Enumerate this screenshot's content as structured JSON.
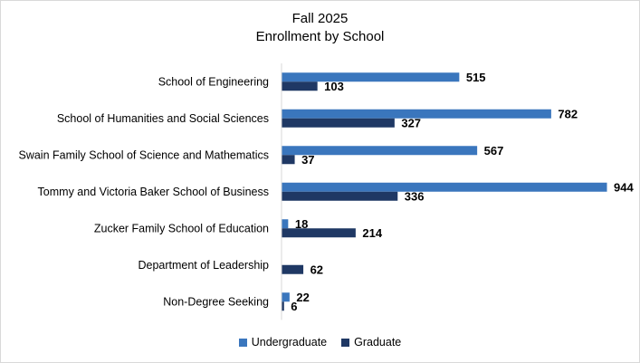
{
  "chart_data": {
    "type": "bar",
    "orientation": "horizontal",
    "title": "Fall 2025",
    "subtitle": "Enrollment by School",
    "categories": [
      "School of Engineering",
      "School of Humanities and Social Sciences",
      "Swain Family School of Science and Mathematics",
      "Tommy and Victoria Baker School of Business",
      "Zucker Family School of Education",
      "Department of Leadership",
      "Non-Degree Seeking"
    ],
    "series": [
      {
        "name": "Undergraduate",
        "color": "#3a76bd",
        "values": [
          515,
          782,
          567,
          944,
          18,
          null,
          22
        ]
      },
      {
        "name": "Graduate",
        "color": "#1f3864",
        "values": [
          103,
          327,
          37,
          336,
          214,
          62,
          6
        ]
      }
    ],
    "xlim": [
      0,
      944
    ],
    "grid": false,
    "legend": "bottom"
  }
}
